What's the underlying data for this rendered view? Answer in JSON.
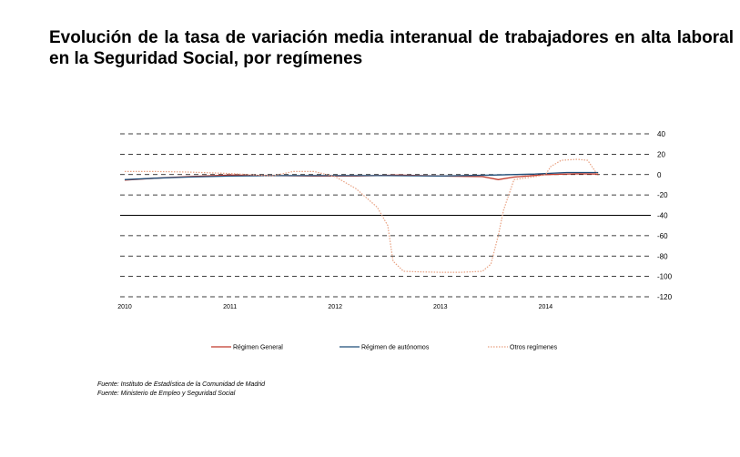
{
  "title": "Evolución de la tasa de variación media interanual de trabajadores en alta laboral en la Seguridad Social, por  regímenes",
  "sources": [
    "Fuente: Instituto de Estadística de la Comunidad de Madrid",
    "Fuente: Ministerio de Empleo y Seguridad Social"
  ],
  "chart_data": {
    "type": "line",
    "x_tick_labels": [
      "2010",
      "2011",
      "2012",
      "2013",
      "2014"
    ],
    "x_ticks": [
      2010,
      2011,
      2012,
      2013,
      2014
    ],
    "xlim": [
      2010,
      2015
    ],
    "y_tick_labels": [
      "40",
      "20",
      "0",
      "-20",
      "-40",
      "-60",
      "-80",
      "-100",
      "-120"
    ],
    "y_ticks": [
      40,
      20,
      0,
      -20,
      -40,
      -60,
      -80,
      -100,
      -120
    ],
    "ylim": [
      -120,
      40
    ],
    "grid": "horizontal dashed",
    "y_axis_position": "right",
    "legend_position": "bottom",
    "series": [
      {
        "name": "Régimen General",
        "color": "#c0392b",
        "style": "solid",
        "x": [
          2010.0,
          2010.3,
          2010.6,
          2011.0,
          2011.4,
          2011.8,
          2012.2,
          2012.6,
          2013.0,
          2013.4,
          2013.55,
          2013.7,
          2014.0,
          2014.3,
          2014.5
        ],
        "y": [
          -5.5,
          -3.5,
          -2,
          -0.5,
          -1,
          -1.5,
          -1.5,
          -0.5,
          -1.5,
          -2,
          -5,
          -2.5,
          0,
          0.8,
          0.5
        ]
      },
      {
        "name": "Régimen de autónomos",
        "color": "#1f4e79",
        "style": "solid",
        "x": [
          2010.0,
          2010.3,
          2010.6,
          2011.0,
          2011.5,
          2012.0,
          2012.5,
          2013.0,
          2013.5,
          2013.9,
          2014.2,
          2014.5
        ],
        "y": [
          -5,
          -3.5,
          -2.5,
          -1.5,
          -1,
          -1,
          -1,
          -1.5,
          -0.5,
          0.5,
          2,
          2
        ]
      },
      {
        "name": "Otros regímenes",
        "color": "#e8a080",
        "style": "dotted",
        "x": [
          2010.0,
          2010.3,
          2010.6,
          2011.0,
          2011.4,
          2011.6,
          2011.8,
          2012.0,
          2012.2,
          2012.4,
          2012.5,
          2012.55,
          2012.65,
          2012.8,
          2013.0,
          2013.2,
          2013.4,
          2013.48,
          2013.55,
          2013.6,
          2013.7,
          2013.9,
          2014.0,
          2014.05,
          2014.15,
          2014.3,
          2014.4,
          2014.5
        ],
        "y": [
          3,
          3,
          2.5,
          1,
          -1.5,
          3,
          3,
          -2,
          -14,
          -32,
          -50,
          -85,
          -95,
          -95.5,
          -96,
          -96,
          -95,
          -88,
          -60,
          -35,
          -5,
          -2,
          0,
          8,
          14,
          15,
          14,
          -1
        ]
      }
    ]
  }
}
